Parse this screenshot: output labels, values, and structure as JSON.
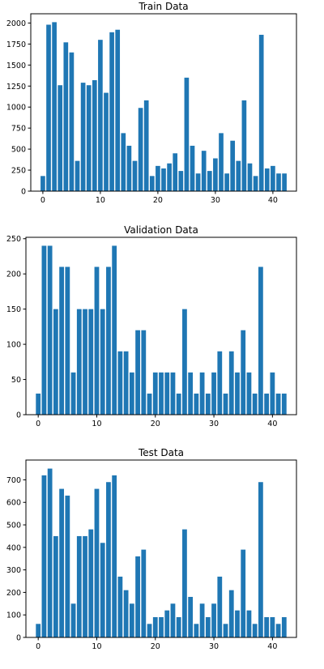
{
  "chart_data": [
    {
      "type": "bar",
      "title": "Train Data",
      "xlabel": "",
      "ylabel": "",
      "x": [
        0,
        1,
        2,
        3,
        4,
        5,
        6,
        7,
        8,
        9,
        10,
        11,
        12,
        13,
        14,
        15,
        16,
        17,
        18,
        19,
        20,
        21,
        22,
        23,
        24,
        25,
        26,
        27,
        28,
        29,
        30,
        31,
        32,
        33,
        34,
        35,
        36,
        37,
        38,
        39,
        40,
        41,
        42
      ],
      "values": [
        180,
        1980,
        2010,
        1260,
        1770,
        1650,
        360,
        1290,
        1260,
        1320,
        1800,
        1170,
        1890,
        1920,
        690,
        540,
        360,
        990,
        1080,
        180,
        300,
        270,
        330,
        450,
        240,
        1350,
        540,
        210,
        480,
        240,
        390,
        690,
        210,
        600,
        360,
        1080,
        330,
        180,
        1860,
        270,
        300,
        210,
        210
      ],
      "xlim": [
        -2.1,
        44.1
      ],
      "ylim": [
        0,
        2110
      ],
      "xticks": [
        0,
        10,
        20,
        30,
        40
      ],
      "yticks": [
        0,
        250,
        500,
        750,
        1000,
        1250,
        1500,
        1750,
        2000
      ],
      "color": "#1f77b4"
    },
    {
      "type": "bar",
      "title": "Validation Data",
      "xlabel": "",
      "ylabel": "",
      "x": [
        0,
        1,
        2,
        3,
        4,
        5,
        6,
        7,
        8,
        9,
        10,
        11,
        12,
        13,
        14,
        15,
        16,
        17,
        18,
        19,
        20,
        21,
        22,
        23,
        24,
        25,
        26,
        27,
        28,
        29,
        30,
        31,
        32,
        33,
        34,
        35,
        36,
        37,
        38,
        39,
        40,
        41,
        42
      ],
      "values": [
        30,
        240,
        240,
        150,
        210,
        210,
        60,
        150,
        150,
        150,
        210,
        150,
        210,
        240,
        90,
        90,
        60,
        120,
        120,
        30,
        60,
        60,
        60,
        60,
        30,
        150,
        60,
        30,
        60,
        30,
        60,
        90,
        30,
        90,
        60,
        120,
        60,
        30,
        210,
        30,
        60,
        30,
        30
      ],
      "xlim": [
        -2.1,
        44.1
      ],
      "ylim": [
        0,
        252
      ],
      "xticks": [
        0,
        10,
        20,
        30,
        40
      ],
      "yticks": [
        0,
        50,
        100,
        150,
        200,
        250
      ],
      "color": "#1f77b4"
    },
    {
      "type": "bar",
      "title": "Test Data",
      "xlabel": "",
      "ylabel": "",
      "x": [
        0,
        1,
        2,
        3,
        4,
        5,
        6,
        7,
        8,
        9,
        10,
        11,
        12,
        13,
        14,
        15,
        16,
        17,
        18,
        19,
        20,
        21,
        22,
        23,
        24,
        25,
        26,
        27,
        28,
        29,
        30,
        31,
        32,
        33,
        34,
        35,
        36,
        37,
        38,
        39,
        40,
        41,
        42
      ],
      "values": [
        60,
        720,
        750,
        450,
        660,
        630,
        150,
        450,
        450,
        480,
        660,
        420,
        690,
        720,
        270,
        210,
        150,
        360,
        390,
        60,
        90,
        90,
        120,
        150,
        90,
        480,
        180,
        60,
        150,
        90,
        150,
        270,
        60,
        210,
        120,
        390,
        120,
        60,
        690,
        90,
        90,
        60,
        90
      ],
      "xlim": [
        -2.1,
        44.1
      ],
      "ylim": [
        0,
        788
      ],
      "xticks": [
        0,
        10,
        20,
        30,
        40
      ],
      "yticks": [
        0,
        100,
        200,
        300,
        400,
        500,
        600,
        700
      ],
      "color": "#1f77b4"
    }
  ]
}
